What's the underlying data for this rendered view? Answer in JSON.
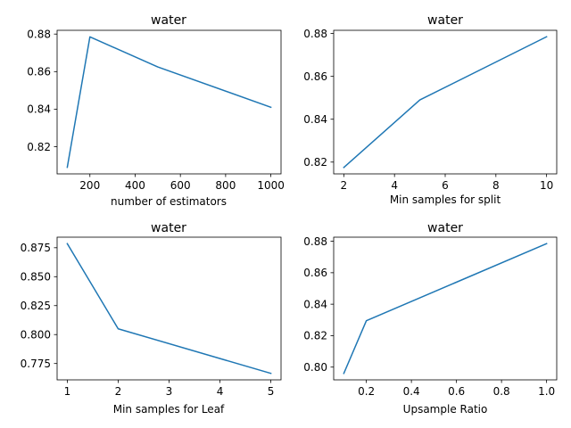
{
  "colors": {
    "series": "#1f77b4",
    "axes": "#000000",
    "background": "#ffffff"
  },
  "chart_data": [
    {
      "type": "line",
      "title": "water",
      "xlabel": "number of estimators",
      "ylabel": "",
      "x": [
        100,
        200,
        500,
        1000
      ],
      "y": [
        0.809,
        0.8785,
        0.8625,
        0.841
      ],
      "xlim": [
        55,
        1045
      ],
      "ylim": [
        0.8055,
        0.882
      ],
      "xticks": [
        200,
        400,
        600,
        800,
        1000
      ],
      "xtick_labels": [
        "200",
        "400",
        "600",
        "800",
        "1000"
      ],
      "yticks": [
        0.82,
        0.84,
        0.86,
        0.88
      ],
      "ytick_labels": [
        "0.82",
        "0.84",
        "0.86",
        "0.88"
      ],
      "grid": false,
      "legend": "none"
    },
    {
      "type": "line",
      "title": "water",
      "xlabel": "Min samples for split",
      "ylabel": "",
      "x": [
        2,
        5,
        10
      ],
      "y": [
        0.8175,
        0.849,
        0.8785
      ],
      "xlim": [
        1.6,
        10.4
      ],
      "ylim": [
        0.8145,
        0.8815
      ],
      "xticks": [
        2,
        4,
        6,
        8,
        10
      ],
      "xtick_labels": [
        "2",
        "4",
        "6",
        "8",
        "10"
      ],
      "yticks": [
        0.82,
        0.84,
        0.86,
        0.88
      ],
      "ytick_labels": [
        "0.82",
        "0.84",
        "0.86",
        "0.88"
      ],
      "grid": false,
      "legend": "none"
    },
    {
      "type": "line",
      "title": "water",
      "xlabel": "Min samples for Leaf",
      "ylabel": "",
      "x": [
        1,
        2,
        5
      ],
      "y": [
        0.8785,
        0.805,
        0.7665
      ],
      "xlim": [
        0.8,
        5.2
      ],
      "ylim": [
        0.7609,
        0.8841
      ],
      "xticks": [
        1,
        2,
        3,
        4,
        5
      ],
      "xtick_labels": [
        "1",
        "2",
        "3",
        "4",
        "5"
      ],
      "yticks": [
        0.775,
        0.8,
        0.825,
        0.85,
        0.875
      ],
      "ytick_labels": [
        "0.775",
        "0.800",
        "0.825",
        "0.850",
        "0.875"
      ],
      "grid": false,
      "legend": "none"
    },
    {
      "type": "line",
      "title": "water",
      "xlabel": "Upsample Ratio",
      "ylabel": "",
      "x": [
        0.1,
        0.2,
        1.0
      ],
      "y": [
        0.796,
        0.8295,
        0.8785
      ],
      "xlim": [
        0.055,
        1.045
      ],
      "ylim": [
        0.7919,
        0.8826
      ],
      "xticks": [
        0.2,
        0.4,
        0.6,
        0.8,
        1.0
      ],
      "xtick_labels": [
        "0.2",
        "0.4",
        "0.6",
        "0.8",
        "1.0"
      ],
      "yticks": [
        0.8,
        0.82,
        0.84,
        0.86,
        0.88
      ],
      "ytick_labels": [
        "0.80",
        "0.82",
        "0.84",
        "0.86",
        "0.88"
      ],
      "grid": false,
      "legend": "none"
    }
  ]
}
